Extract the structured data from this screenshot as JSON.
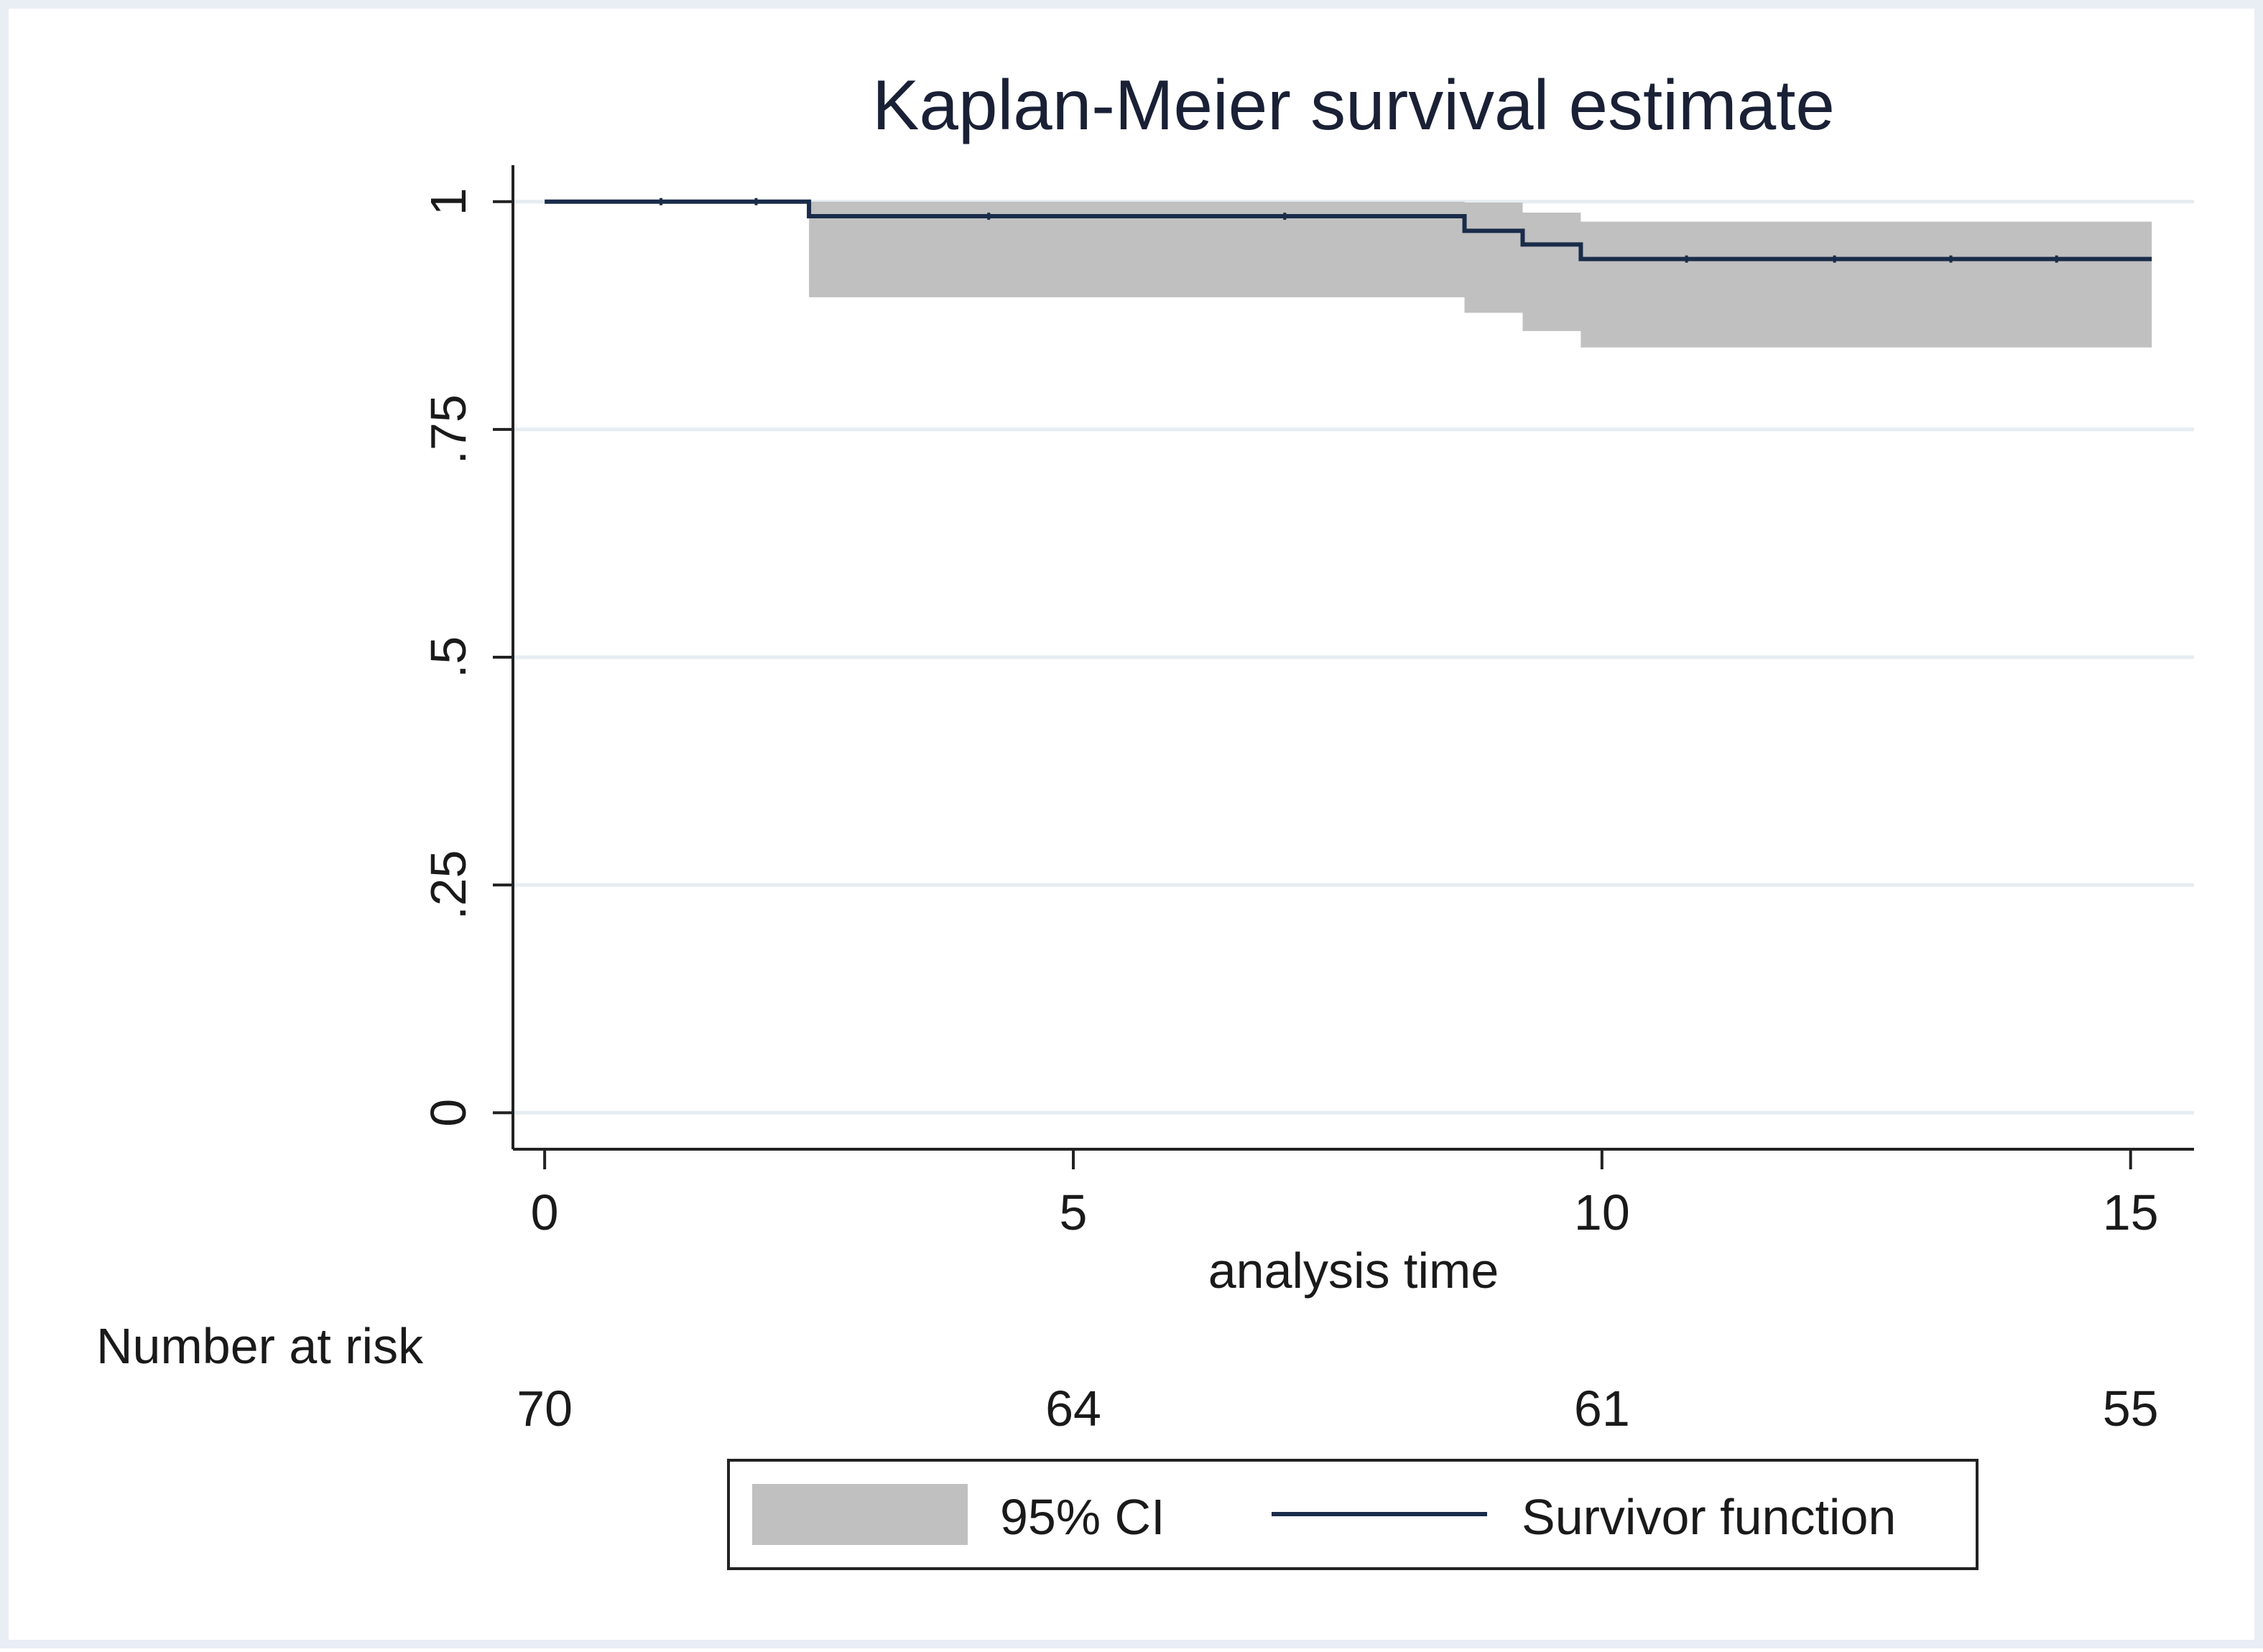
{
  "chart_data": {
    "type": "line",
    "subtype": "kaplan-meier-step",
    "title": "Kaplan-Meier survival estimate",
    "xlabel": "analysis time",
    "ylabel": "",
    "xlim": [
      -0.3,
      15.6
    ],
    "ylim": [
      -0.04,
      1.04
    ],
    "x_ticks": [
      0,
      5,
      10,
      15
    ],
    "x_tick_labels": [
      "0",
      "5",
      "10",
      "15"
    ],
    "y_ticks": [
      0,
      0.25,
      0.5,
      0.75,
      1
    ],
    "y_tick_labels": [
      "0",
      ".25",
      ".5",
      ".75",
      "1"
    ],
    "grid": "horizontal",
    "series": [
      {
        "name": "Survivor function",
        "color": "#1a2c4a",
        "steps": [
          {
            "x": 0,
            "y": 1.0
          },
          {
            "x": 2.5,
            "y": 0.984
          },
          {
            "x": 8.7,
            "y": 0.968
          },
          {
            "x": 9.25,
            "y": 0.953
          },
          {
            "x": 9.8,
            "y": 0.937
          },
          {
            "x": 15.2,
            "y": 0.937
          }
        ]
      }
    ],
    "confidence_band": {
      "name": "95% CI",
      "color": "#c0c0c0",
      "steps": [
        {
          "x": 2.5,
          "lower": 0.895,
          "upper": 1.0
        },
        {
          "x": 8.7,
          "lower": 0.878,
          "upper": 0.999
        },
        {
          "x": 9.25,
          "lower": 0.858,
          "upper": 0.988
        },
        {
          "x": 9.8,
          "lower": 0.84,
          "upper": 0.978
        },
        {
          "x": 15.2,
          "lower": 0.84,
          "upper": 0.978
        }
      ]
    },
    "risk_table": {
      "title": "Number at risk",
      "times": [
        0,
        5,
        10,
        15
      ],
      "counts": [
        "70",
        "64",
        "61",
        "55"
      ]
    },
    "legend": {
      "position": "bottom",
      "entries": [
        {
          "label": "95% CI",
          "kind": "area",
          "color": "#c0c0c0"
        },
        {
          "label": "Survivor function",
          "kind": "line",
          "color": "#1a2c4a"
        }
      ]
    },
    "colors": {
      "outer_background": "#e8eef4",
      "plot_background": "#ffffff",
      "grid": "#e6edf2",
      "axis": "#222222",
      "text": "#1a1a1a",
      "title": "#1a2035"
    }
  }
}
